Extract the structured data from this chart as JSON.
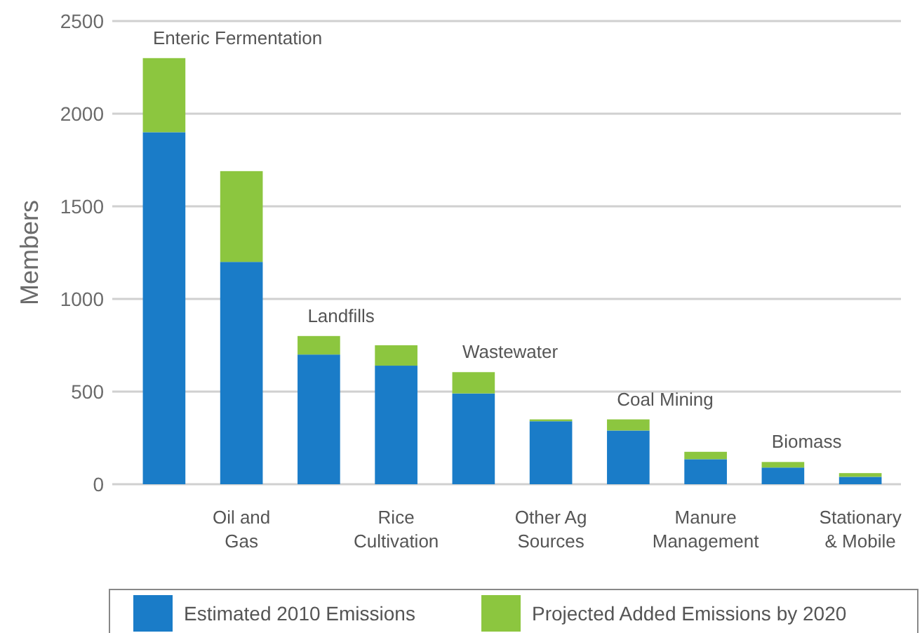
{
  "chart_data": {
    "type": "bar",
    "stacked": true,
    "ylabel": "Members",
    "categories": [
      null,
      "Oil and Gas",
      null,
      "Rice Cultivation",
      null,
      "Other Ag Sources",
      null,
      "Manure Management",
      null,
      "Stationary & Mobile"
    ],
    "annotations": [
      "Enteric Fermentation",
      "Landfills",
      "Wastewater",
      "Coal Mining",
      "Biomass"
    ],
    "series": [
      {
        "name": "Estimated 2010 Emissions",
        "color": "#1a7cc8",
        "values": [
          1900,
          1200,
          700,
          640,
          490,
          340,
          290,
          135,
          90,
          40
        ]
      },
      {
        "name": "Projected Added Emissions by 2020",
        "color": "#8cc63f",
        "values": [
          400,
          490,
          100,
          110,
          115,
          10,
          60,
          40,
          30,
          20
        ]
      }
    ],
    "ylim": [
      0,
      2500
    ],
    "yticks": [
      0,
      500,
      1000,
      1500,
      2000,
      2500
    ],
    "grid": "y",
    "legend": "bottom"
  }
}
